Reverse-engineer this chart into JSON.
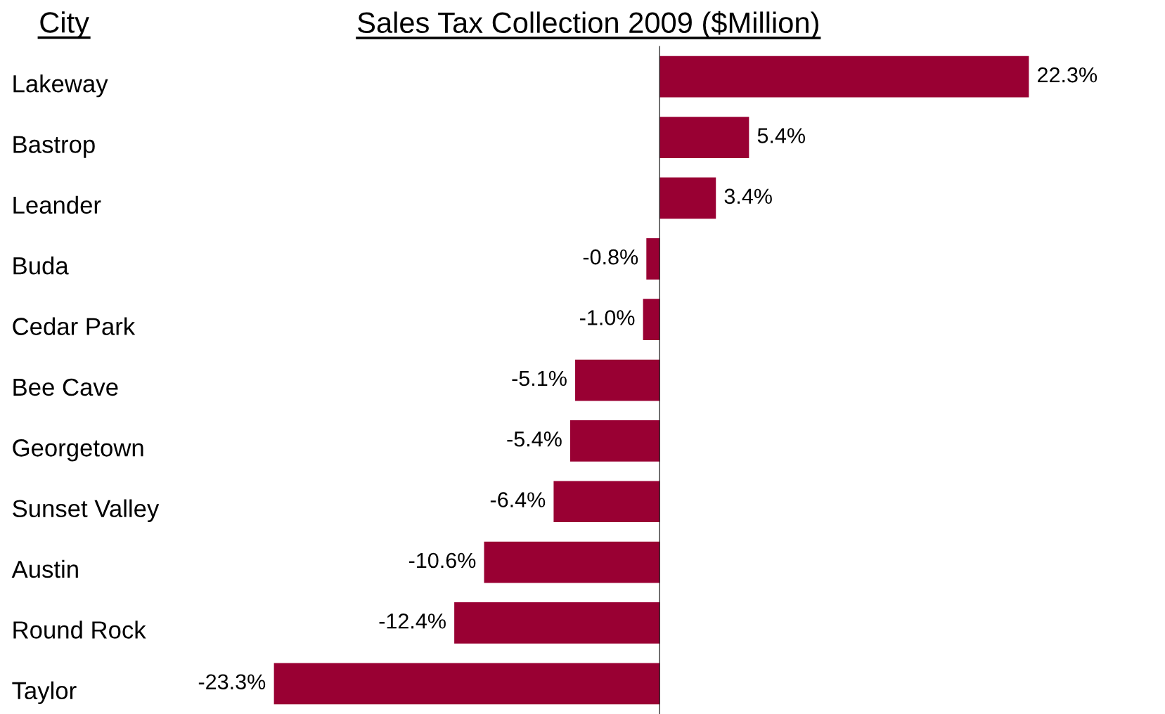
{
  "chart_data": {
    "type": "bar",
    "orientation": "horizontal",
    "title": "Sales Tax Collection 2009 ($Million)",
    "ylabel": "City",
    "categories": [
      "Lakeway",
      "Bastrop",
      "Leander",
      "Buda",
      "Cedar Park",
      "Bee Cave",
      "Georgetown",
      "Sunset Valley",
      "Austin",
      "Round Rock",
      "Taylor"
    ],
    "values": [
      22.3,
      5.4,
      3.4,
      -0.8,
      -1.0,
      -5.1,
      -5.4,
      -6.4,
      -10.6,
      -12.4,
      -23.3
    ],
    "value_labels": [
      "22.3%",
      "5.4%",
      "3.4%",
      "-0.8%",
      "-1.0%",
      "-5.1%",
      "-5.4%",
      "-6.4%",
      "-10.6%",
      "-12.4%",
      "-23.3%"
    ],
    "color": "#990033"
  }
}
